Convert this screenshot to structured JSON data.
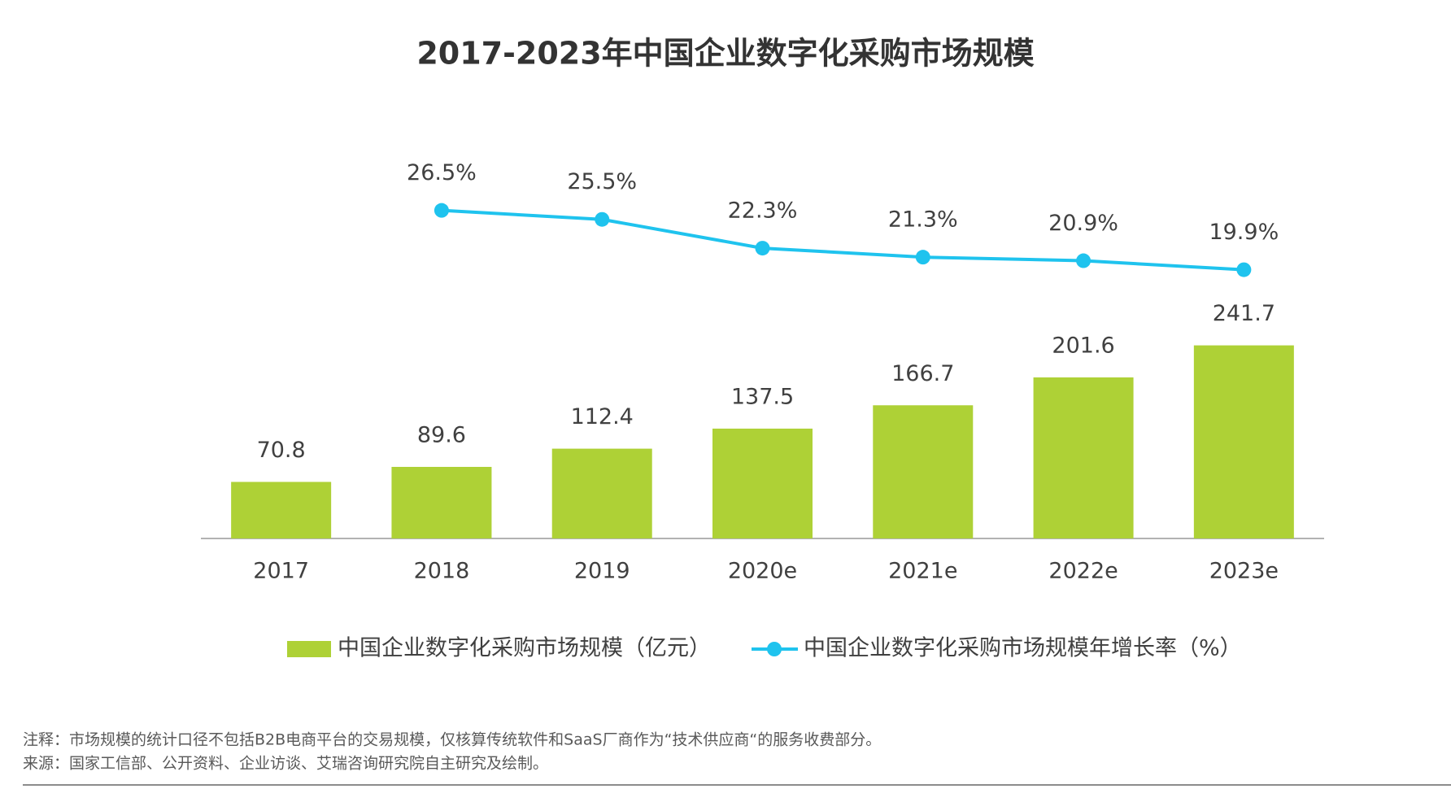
{
  "chart_data": {
    "type": "bar",
    "title": "2017-2023年中国企业数字化采购市场规模",
    "categories": [
      "2017",
      "2018",
      "2019",
      "2020e",
      "2021e",
      "2022e",
      "2023e"
    ],
    "series": [
      {
        "name": "中国企业数字化采购市场规模（亿元）",
        "type": "bar",
        "color": "#aed136",
        "values": [
          70.8,
          89.6,
          112.4,
          137.5,
          166.7,
          201.6,
          241.7
        ]
      },
      {
        "name": "中国企业数字化采购市场规模年增长率（%）",
        "type": "line",
        "axis": "y2",
        "color": "#1fc3ee",
        "values": [
          null,
          26.5,
          25.5,
          22.3,
          21.3,
          20.9,
          19.9
        ],
        "value_labels": [
          null,
          "26.5%",
          "25.5%",
          "22.3%",
          "21.3%",
          "20.9%",
          "19.9%"
        ]
      }
    ],
    "ylim": [
      0,
      450
    ],
    "y2lim": [
      -10,
      30
    ]
  },
  "notes": [
    "注释：市场规模的统计口径不包括B2B电商平台的交易规模，仅核算传统软件和SaaS厂商作为“技术供应商“的服务收费部分。",
    "来源：国家工信部、公开资料、企业访谈、艾瑞咨询研究院自主研究及绘制。"
  ]
}
